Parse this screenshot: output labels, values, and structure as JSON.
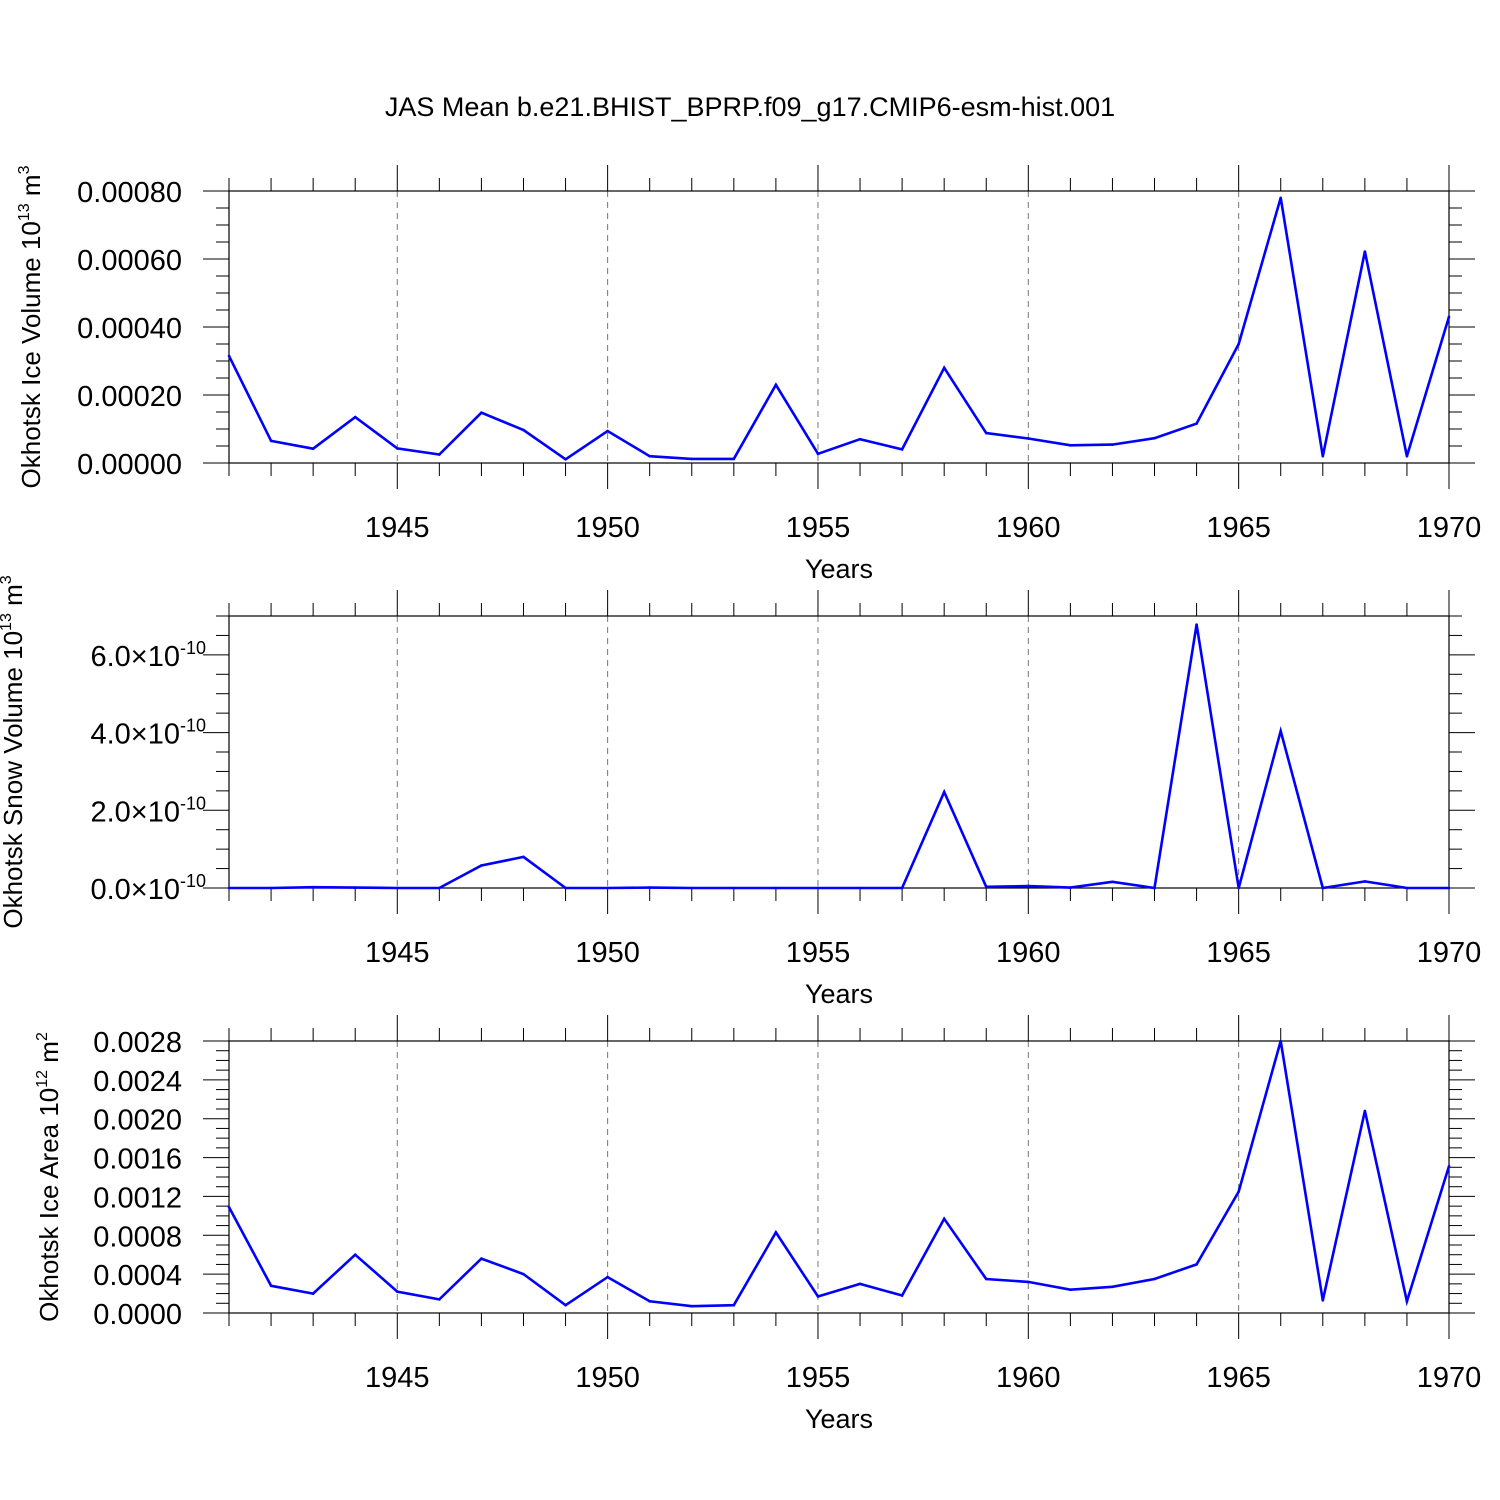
{
  "title": "JAS Mean b.e21.BHIST_BPRP.f09_g17.CMIP6-esm-hist.001",
  "line_color": "#0000ff",
  "chart_data": [
    {
      "type": "line",
      "ylabel_main": "Okhotsk Ice Volume 10",
      "ylabel_exp": "13",
      "ylabel_unit": " m",
      "ylabel_unit_exp": "3",
      "xlabel": "Years",
      "xlim": [
        1941,
        1970
      ],
      "ylim": [
        0,
        0.0008
      ],
      "yticks": [
        0,
        0.0002,
        0.0004,
        0.0006,
        0.0008
      ],
      "ytick_labels": [
        "0.00000",
        "0.00020",
        "0.00040",
        "0.00060",
        "0.00080"
      ],
      "yminor_step": 5e-05,
      "xticks": [
        1945,
        1950,
        1955,
        1960,
        1965,
        1970
      ],
      "xtick_labels": [
        "1945",
        "1950",
        "1955",
        "1960",
        "1965",
        "1970"
      ],
      "x": [
        1941,
        1942,
        1943,
        1944,
        1945,
        1946,
        1947,
        1948,
        1949,
        1950,
        1951,
        1952,
        1953,
        1954,
        1955,
        1956,
        1957,
        1958,
        1959,
        1960,
        1961,
        1962,
        1963,
        1964,
        1965,
        1966,
        1967,
        1968,
        1969,
        1970
      ],
      "values": [
        0.000315,
        6.5e-05,
        4.2e-05,
        0.000135,
        4.3e-05,
        2.5e-05,
        0.000148,
        9.7e-05,
        1.1e-05,
        9.4e-05,
        2e-05,
        1.2e-05,
        1.2e-05,
        0.00023,
        2.7e-05,
        7e-05,
        4e-05,
        0.00028,
        8.8e-05,
        7.2e-05,
        5.2e-05,
        5.4e-05,
        7.3e-05,
        0.000116,
        0.00035,
        0.00078,
        2e-05,
        0.000622,
        2e-05,
        0.00043
      ]
    },
    {
      "type": "line",
      "ylabel_main": "Okhotsk Snow Volume 10",
      "ylabel_exp": "13",
      "ylabel_unit": " m",
      "ylabel_unit_exp": "3",
      "xlabel": "Years",
      "xlim": [
        1941,
        1970
      ],
      "ylim": [
        0,
        7e-10
      ],
      "yticks": [
        0,
        2e-10,
        4e-10,
        6e-10
      ],
      "ytick_labels": [
        "0.0×10",
        "2.0×10",
        "4.0×10",
        "6.0×10"
      ],
      "ytick_exp": "-10",
      "yminor_step": 5e-11,
      "xticks": [
        1945,
        1950,
        1955,
        1960,
        1965,
        1970
      ],
      "xtick_labels": [
        "1945",
        "1950",
        "1955",
        "1960",
        "1965",
        "1970"
      ],
      "x": [
        1941,
        1942,
        1943,
        1944,
        1945,
        1946,
        1947,
        1948,
        1949,
        1950,
        1951,
        1952,
        1953,
        1954,
        1955,
        1956,
        1957,
        1958,
        1959,
        1960,
        1961,
        1962,
        1963,
        1964,
        1965,
        1966,
        1967,
        1968,
        1969,
        1970
      ],
      "values": [
        0,
        0,
        2e-12,
        1e-12,
        0,
        0,
        5.8e-11,
        8e-11,
        0,
        0,
        1e-12,
        0,
        0,
        0,
        0,
        0,
        0,
        2.47e-10,
        3e-12,
        5e-12,
        1e-12,
        1.6e-11,
        0,
        6.78e-10,
        0,
        4.04e-10,
        0,
        1.7e-11,
        0,
        0
      ]
    },
    {
      "type": "line",
      "ylabel_main": "Okhotsk Ice Area 10",
      "ylabel_exp": "12",
      "ylabel_unit": " m",
      "ylabel_unit_exp": "2",
      "xlabel": "Years",
      "xlim": [
        1941,
        1970
      ],
      "ylim": [
        0,
        0.0028
      ],
      "yticks": [
        0,
        0.0004,
        0.0008,
        0.0012,
        0.0016,
        0.002,
        0.0024,
        0.0028
      ],
      "ytick_labels": [
        "0.0000",
        "0.0004",
        "0.0008",
        "0.0012",
        "0.0016",
        "0.0020",
        "0.0024",
        "0.0028"
      ],
      "yminor_step": 0.0001,
      "xticks": [
        1945,
        1950,
        1955,
        1960,
        1965,
        1970
      ],
      "xtick_labels": [
        "1945",
        "1950",
        "1955",
        "1960",
        "1965",
        "1970"
      ],
      "x": [
        1941,
        1942,
        1943,
        1944,
        1945,
        1946,
        1947,
        1948,
        1949,
        1950,
        1951,
        1952,
        1953,
        1954,
        1955,
        1956,
        1957,
        1958,
        1959,
        1960,
        1961,
        1962,
        1963,
        1964,
        1965,
        1966,
        1967,
        1968,
        1969,
        1970
      ],
      "values": [
        0.00109,
        0.00028,
        0.0002,
        0.0006,
        0.00022,
        0.00014,
        0.00056,
        0.0004,
        8e-05,
        0.00037,
        0.00012,
        7e-05,
        8e-05,
        0.00083,
        0.00017,
        0.0003,
        0.00018,
        0.00097,
        0.00035,
        0.00032,
        0.00024,
        0.00027,
        0.00035,
        0.0005,
        0.00125,
        0.0028,
        0.00013,
        0.00208,
        0.00012,
        0.00151
      ]
    }
  ]
}
